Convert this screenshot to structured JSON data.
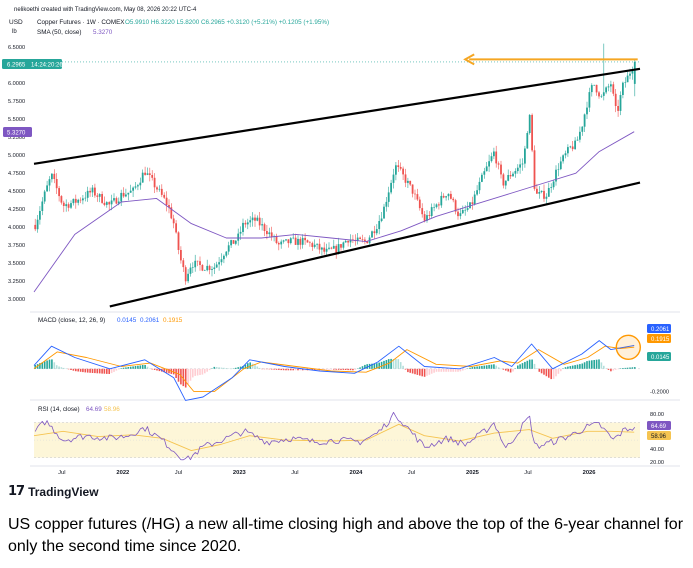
{
  "header": {
    "created_by": "nelikoethi created with TradingView.com, May 08, 2026 20:22 UTC-4",
    "symbol_line": "Copper Futures · 1W · COMEX",
    "ohlc": "O5.9910 H6.3220 L5.8200 C6.2965 +0.3120 (+5.21%) +0.1205 (+1.95%)",
    "sma_label": "SMA (50, close)",
    "sma_value": "5.3270",
    "currency": "USD",
    "unit": "lb"
  },
  "price_badges": {
    "last": "6.2965",
    "timer": "14:24:20:26",
    "sma": "5.3270"
  },
  "macd_header": {
    "label": "MACD (close, 12, 26, 9)",
    "v1": "0.0145",
    "v2": "0.2061",
    "v3": "0.1915"
  },
  "macd_badges": {
    "macd": "0.2061",
    "signal": "0.1915",
    "hist": "0.0145"
  },
  "rsi_header": {
    "label": "RSI (14, close)",
    "v1": "64.69",
    "v2": "58.96"
  },
  "rsi_badges": {
    "rsi": "64.69",
    "ma": "58.96"
  },
  "footer": {
    "logo_text": "TradingView",
    "caption": "US copper futures (/HG) a new all-time closing high and above the top of the 6-year channel for only the second time since 2020."
  },
  "colors": {
    "up": "#26a69a",
    "down": "#ef5350",
    "sma": "#7e57c2",
    "macd": "#2962ff",
    "signal": "#ff9800",
    "rsi": "#7e57c2",
    "arrow": "#f5a623",
    "channel": "#000000",
    "rsi_band": "#fdf6d8"
  },
  "chart_data": [
    {
      "type": "candlestick",
      "timeframe": "1W",
      "ylim": [
        2.85,
        6.6
      ],
      "y_ticks": [
        "6.5000",
        "6.2500",
        "6.0000",
        "5.7500",
        "5.5000",
        "5.2500",
        "5.0000",
        "4.7500",
        "4.5000",
        "4.2500",
        "4.0000",
        "3.7500",
        "3.5000",
        "3.2500",
        "3.0000"
      ],
      "x_ticks": [
        "Jul",
        "2022",
        "Jul",
        "2023",
        "Jul",
        "2024",
        "Jul",
        "2025",
        "Jul",
        "2026"
      ],
      "x_range": [
        2021.25,
        2026.45
      ],
      "close_path": [
        [
          2021.25,
          3.98
        ],
        [
          2021.35,
          4.5
        ],
        [
          2021.4,
          4.72
        ],
        [
          2021.5,
          4.3
        ],
        [
          2021.6,
          4.35
        ],
        [
          2021.75,
          4.5
        ],
        [
          2021.9,
          4.3
        ],
        [
          2022.0,
          4.45
        ],
        [
          2022.1,
          4.5
        ],
        [
          2022.2,
          4.78
        ],
        [
          2022.3,
          4.55
        ],
        [
          2022.4,
          4.3
        ],
        [
          2022.45,
          4.05
        ],
        [
          2022.5,
          3.6
        ],
        [
          2022.55,
          3.3
        ],
        [
          2022.6,
          3.5
        ],
        [
          2022.7,
          3.45
        ],
        [
          2022.8,
          3.45
        ],
        [
          2022.9,
          3.7
        ],
        [
          2023.0,
          3.85
        ],
        [
          2023.05,
          4.05
        ],
        [
          2023.15,
          4.1
        ],
        [
          2023.25,
          3.95
        ],
        [
          2023.35,
          3.75
        ],
        [
          2023.45,
          3.8
        ],
        [
          2023.55,
          3.8
        ],
        [
          2023.65,
          3.75
        ],
        [
          2023.75,
          3.65
        ],
        [
          2023.85,
          3.7
        ],
        [
          2023.95,
          3.85
        ],
        [
          2024.0,
          3.8
        ],
        [
          2024.1,
          3.8
        ],
        [
          2024.2,
          4.05
        ],
        [
          2024.25,
          4.25
        ],
        [
          2024.3,
          4.55
        ],
        [
          2024.35,
          4.85
        ],
        [
          2024.4,
          4.75
        ],
        [
          2024.5,
          4.5
        ],
        [
          2024.6,
          4.1
        ],
        [
          2024.7,
          4.3
        ],
        [
          2024.8,
          4.5
        ],
        [
          2024.9,
          4.15
        ],
        [
          2025.0,
          4.3
        ],
        [
          2025.1,
          4.7
        ],
        [
          2025.2,
          5.05
        ],
        [
          2025.27,
          4.6
        ],
        [
          2025.35,
          4.75
        ],
        [
          2025.45,
          4.9
        ],
        [
          2025.5,
          5.6
        ],
        [
          2025.55,
          4.45
        ],
        [
          2025.65,
          4.45
        ],
        [
          2025.75,
          4.85
        ],
        [
          2025.85,
          5.1
        ],
        [
          2025.9,
          5.15
        ],
        [
          2025.95,
          5.4
        ],
        [
          2026.0,
          5.75
        ],
        [
          2026.05,
          6.0
        ],
        [
          2026.12,
          5.8
        ],
        [
          2026.2,
          6.0
        ],
        [
          2026.25,
          5.55
        ],
        [
          2026.3,
          5.95
        ],
        [
          2026.35,
          6.1
        ],
        [
          2026.4,
          6.2965
        ]
      ],
      "sma_50_path": [
        [
          2021.25,
          3.1
        ],
        [
          2021.6,
          3.9
        ],
        [
          2022.0,
          4.35
        ],
        [
          2022.3,
          4.4
        ],
        [
          2022.6,
          4.05
        ],
        [
          2022.9,
          3.85
        ],
        [
          2023.2,
          3.85
        ],
        [
          2023.5,
          3.9
        ],
        [
          2023.8,
          3.85
        ],
        [
          2024.1,
          3.8
        ],
        [
          2024.4,
          3.95
        ],
        [
          2024.7,
          4.15
        ],
        [
          2025.0,
          4.3
        ],
        [
          2025.3,
          4.45
        ],
        [
          2025.6,
          4.6
        ],
        [
          2025.9,
          4.75
        ],
        [
          2026.1,
          5.05
        ],
        [
          2026.4,
          5.327
        ]
      ],
      "channel_upper": [
        [
          2021.25,
          4.88
        ],
        [
          2026.45,
          6.2
        ]
      ],
      "channel_lower": [
        [
          2021.9,
          2.9
        ],
        [
          2026.45,
          4.62
        ]
      ],
      "arrow": {
        "from": [
          2026.43,
          6.33
        ],
        "to": [
          2024.95,
          6.33
        ]
      }
    },
    {
      "type": "macd",
      "params": "12, 26, 9",
      "ylim": [
        -0.25,
        0.45
      ],
      "y_ticks": [
        "-0.2000"
      ],
      "macd_path": [
        [
          2021.25,
          0.03
        ],
        [
          2021.4,
          0.2
        ],
        [
          2021.6,
          0.1
        ],
        [
          2021.9,
          0.0
        ],
        [
          2022.2,
          0.08
        ],
        [
          2022.45,
          -0.08
        ],
        [
          2022.55,
          -0.28
        ],
        [
          2022.7,
          -0.25
        ],
        [
          2022.95,
          -0.08
        ],
        [
          2023.1,
          0.08
        ],
        [
          2023.4,
          0.02
        ],
        [
          2023.7,
          -0.02
        ],
        [
          2024.0,
          -0.04
        ],
        [
          2024.2,
          0.06
        ],
        [
          2024.38,
          0.2
        ],
        [
          2024.6,
          0.02
        ],
        [
          2024.9,
          0.0
        ],
        [
          2025.2,
          0.1
        ],
        [
          2025.35,
          0.02
        ],
        [
          2025.52,
          0.22
        ],
        [
          2025.7,
          0.0
        ],
        [
          2025.95,
          0.13
        ],
        [
          2026.1,
          0.25
        ],
        [
          2026.2,
          0.17
        ],
        [
          2026.4,
          0.2061
        ]
      ],
      "signal_path": [
        [
          2021.25,
          0.0
        ],
        [
          2021.45,
          0.15
        ],
        [
          2021.7,
          0.1
        ],
        [
          2022.0,
          0.02
        ],
        [
          2022.25,
          0.05
        ],
        [
          2022.5,
          -0.05
        ],
        [
          2022.62,
          -0.2
        ],
        [
          2022.8,
          -0.2
        ],
        [
          2023.05,
          0.0
        ],
        [
          2023.2,
          0.06
        ],
        [
          2023.5,
          0.02
        ],
        [
          2023.8,
          -0.02
        ],
        [
          2024.1,
          -0.03
        ],
        [
          2024.3,
          0.05
        ],
        [
          2024.45,
          0.17
        ],
        [
          2024.7,
          0.04
        ],
        [
          2025.0,
          0.02
        ],
        [
          2025.25,
          0.07
        ],
        [
          2025.4,
          0.05
        ],
        [
          2025.58,
          0.17
        ],
        [
          2025.8,
          0.04
        ],
        [
          2026.0,
          0.1
        ],
        [
          2026.15,
          0.2
        ],
        [
          2026.28,
          0.18
        ],
        [
          2026.4,
          0.1915
        ]
      ],
      "histogram_latest": 0.0145
    },
    {
      "type": "rsi",
      "period": 14,
      "ylim": [
        25,
        90
      ],
      "y_ticks": [
        "80.00",
        "40.00",
        "20.00"
      ],
      "band": [
        30,
        70
      ],
      "rsi_path": [
        [
          2021.25,
          58
        ],
        [
          2021.35,
          72
        ],
        [
          2021.5,
          50
        ],
        [
          2021.7,
          55
        ],
        [
          2021.9,
          52
        ],
        [
          2022.05,
          55
        ],
        [
          2022.2,
          64
        ],
        [
          2022.35,
          50
        ],
        [
          2022.5,
          32
        ],
        [
          2022.57,
          28
        ],
        [
          2022.7,
          42
        ],
        [
          2022.9,
          52
        ],
        [
          2023.05,
          60
        ],
        [
          2023.25,
          48
        ],
        [
          2023.45,
          52
        ],
        [
          2023.65,
          48
        ],
        [
          2023.85,
          50
        ],
        [
          2024.05,
          48
        ],
        [
          2024.2,
          58
        ],
        [
          2024.35,
          80
        ],
        [
          2024.45,
          65
        ],
        [
          2024.6,
          42
        ],
        [
          2024.8,
          52
        ],
        [
          2024.95,
          45
        ],
        [
          2025.1,
          58
        ],
        [
          2025.2,
          70
        ],
        [
          2025.3,
          40
        ],
        [
          2025.5,
          77
        ],
        [
          2025.55,
          42
        ],
        [
          2025.7,
          48
        ],
        [
          2025.85,
          55
        ],
        [
          2026.0,
          65
        ],
        [
          2026.1,
          68
        ],
        [
          2026.22,
          50
        ],
        [
          2026.32,
          62
        ],
        [
          2026.4,
          64.69
        ]
      ],
      "rsi_ma_path": [
        [
          2021.25,
          55
        ],
        [
          2021.5,
          60
        ],
        [
          2021.8,
          54
        ],
        [
          2022.1,
          56
        ],
        [
          2022.35,
          52
        ],
        [
          2022.6,
          38
        ],
        [
          2022.85,
          45
        ],
        [
          2023.1,
          55
        ],
        [
          2023.4,
          50
        ],
        [
          2023.8,
          49
        ],
        [
          2024.1,
          50
        ],
        [
          2024.38,
          68
        ],
        [
          2024.6,
          55
        ],
        [
          2024.9,
          49
        ],
        [
          2025.2,
          58
        ],
        [
          2025.5,
          62
        ],
        [
          2025.7,
          52
        ],
        [
          2026.0,
          60
        ],
        [
          2026.2,
          60
        ],
        [
          2026.4,
          58.96
        ]
      ]
    }
  ]
}
